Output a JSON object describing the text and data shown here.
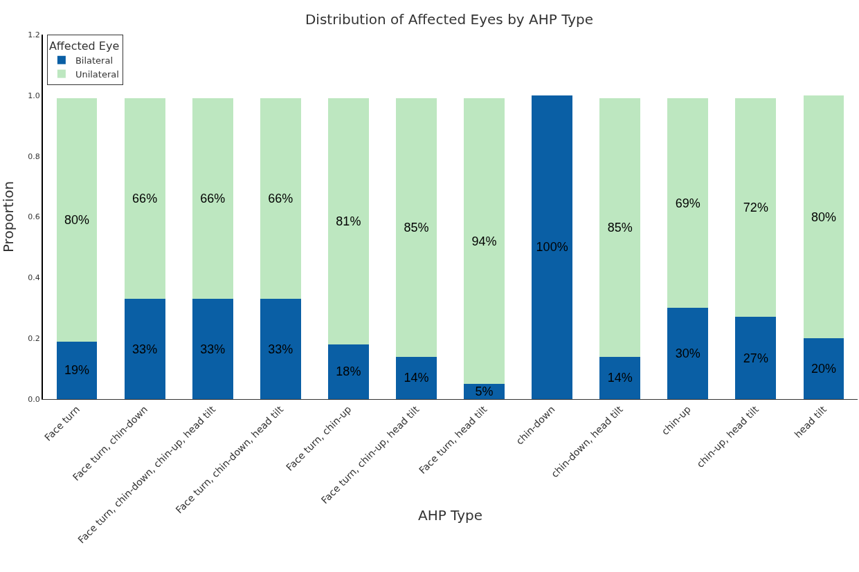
{
  "chart_data": {
    "type": "bar",
    "title": "Distribution of Affected Eyes by AHP Type",
    "xlabel": "AHP Type",
    "ylabel": "Proportion",
    "legend_title": "Affected Eye",
    "categories": [
      "Face turn",
      "Face turn, chin-down",
      "Face turn, chin-down, chin-up, head tilt",
      "Face turn, chin-down, head tilt",
      "Face turn, chin-up",
      "Face turn, chin-up, head tilt",
      "Face turn, head tilt",
      "chin-down",
      "chin-down, head tilt",
      "chin-up",
      "chin-up, head tilt",
      "head tilt"
    ],
    "series": [
      {
        "name": "Bilateral",
        "color": "#0a5fa5",
        "values": [
          0.19,
          0.33,
          0.33,
          0.33,
          0.18,
          0.14,
          0.05,
          1.0,
          0.14,
          0.3,
          0.27,
          0.2
        ],
        "value_labels": [
          "19%",
          "33%",
          "33%",
          "33%",
          "18%",
          "14%",
          "5%",
          "100%",
          "14%",
          "30%",
          "27%",
          "20%"
        ]
      },
      {
        "name": "Unilateral",
        "color": "#bde7c0",
        "values": [
          0.8,
          0.66,
          0.66,
          0.66,
          0.81,
          0.85,
          0.94,
          0,
          0.85,
          0.69,
          0.72,
          0.8
        ],
        "value_labels": [
          "80%",
          "66%",
          "66%",
          "66%",
          "81%",
          "85%",
          "94%",
          null,
          "85%",
          "69%",
          "72%",
          "80%"
        ]
      }
    ],
    "stacked": true,
    "ylim": [
      0,
      1.2
    ],
    "yticks": [
      {
        "value": 0,
        "label": "0.0"
      },
      {
        "value": 0.2,
        "label": "0.2"
      },
      {
        "value": 0.4,
        "label": "0.4"
      },
      {
        "value": 0.6,
        "label": "0.6"
      },
      {
        "value": 0.8,
        "label": "0.8"
      },
      {
        "value": 1.0,
        "label": "1.0"
      },
      {
        "value": 1.2,
        "label": "1.2"
      }
    ],
    "grid": false,
    "legend": "top left"
  }
}
